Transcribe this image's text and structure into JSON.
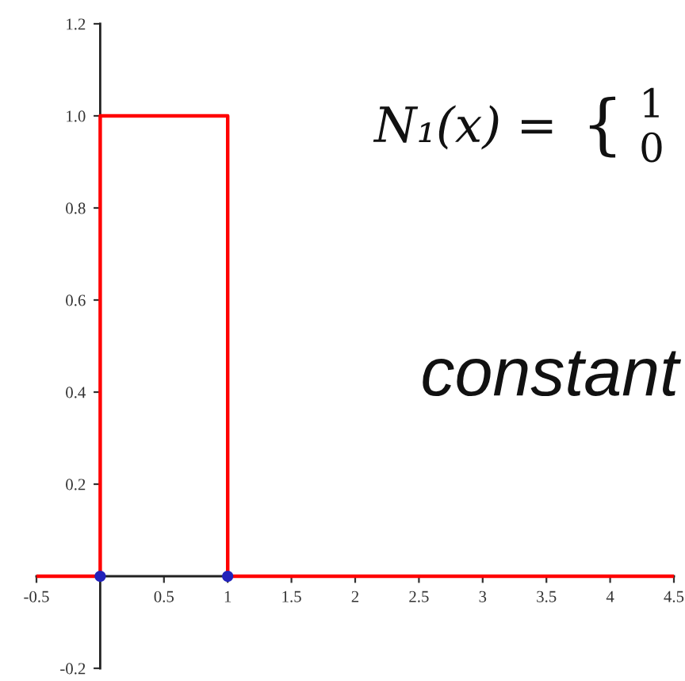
{
  "chart_data": {
    "type": "step",
    "xlim": [
      -0.5,
      4.5
    ],
    "ylim": [
      -0.2,
      1.2
    ],
    "xticks": [
      -0.5,
      0.5,
      1,
      1.5,
      2,
      2.5,
      3,
      3.5,
      4,
      4.5
    ],
    "yticks": [
      -0.2,
      0.2,
      0.4,
      0.6,
      0.8,
      {
        "value": 1,
        "label": "1.0"
      },
      1.2
    ],
    "series": [
      {
        "color": "#ff0000",
        "x": [
          -0.5,
          0,
          1,
          4.5
        ],
        "values": [
          0,
          1,
          0,
          0
        ],
        "line_style": "solid"
      },
      {
        "type": "scatter",
        "color": "#2222bb",
        "x": [
          0,
          1
        ],
        "values": [
          0,
          0
        ],
        "marker": "circle"
      }
    ],
    "annotations": [
      "N₁(x) =",
      "{",
      "1",
      "0",
      "constant"
    ]
  }
}
